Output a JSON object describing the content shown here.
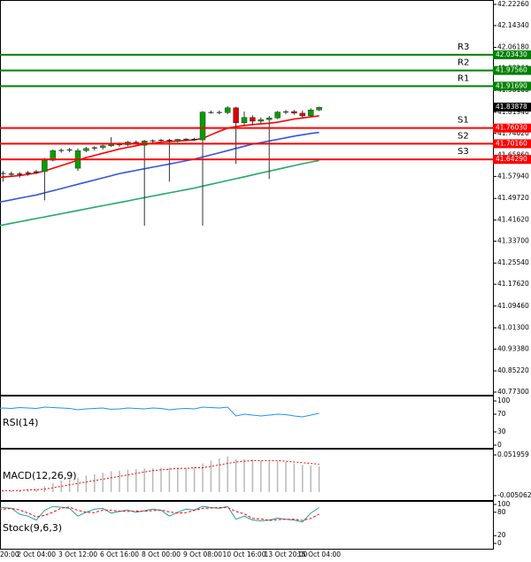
{
  "chart_data": [
    {
      "type": "candlestick",
      "categories": [
        "20:00",
        null,
        null,
        null,
        null,
        "2 Oct 04:00",
        null,
        null,
        null,
        null,
        "3 Oct 12:00",
        null,
        null,
        null,
        null,
        "6 Oct 16:00",
        null,
        null,
        null,
        null,
        "8 Oct 00:00",
        null,
        null,
        null,
        null,
        "9 Oct 08:00",
        null,
        null,
        null,
        null,
        "10 Oct 16:00",
        null,
        null,
        null,
        null,
        "13 Oct 20:00",
        null,
        null,
        null,
        "15 Oct 04:00"
      ],
      "open": [
        41.6,
        41.592,
        41.59,
        41.586,
        41.59,
        41.594,
        41.598,
        41.64,
        41.676,
        41.678,
        41.61,
        41.676,
        41.684,
        41.688,
        41.694,
        41.7,
        41.698,
        41.708,
        41.696,
        41.712,
        41.714,
        41.716,
        41.712,
        41.718,
        41.72,
        41.716,
        41.82,
        41.82,
        41.818,
        41.836,
        41.78,
        41.8,
        41.786,
        41.792,
        41.798,
        41.82,
        41.822,
        41.816,
        41.806,
        41.828
      ],
      "high": [
        41.61,
        41.6,
        41.598,
        41.596,
        41.6,
        41.604,
        41.648,
        41.68,
        41.684,
        41.686,
        41.684,
        41.69,
        41.692,
        41.698,
        41.726,
        41.706,
        41.712,
        41.714,
        41.716,
        41.718,
        41.72,
        41.72,
        41.72,
        41.722,
        41.724,
        41.824,
        41.826,
        41.826,
        41.842,
        41.84,
        41.822,
        41.808,
        41.8,
        41.806,
        41.824,
        41.828,
        41.828,
        41.826,
        41.834,
        41.84
      ],
      "low": [
        41.585,
        41.56,
        41.578,
        41.575,
        41.582,
        41.588,
        41.49,
        41.636,
        41.668,
        41.67,
        41.6,
        41.67,
        41.676,
        41.68,
        41.69,
        41.69,
        41.692,
        41.7,
        41.395,
        41.706,
        41.708,
        41.56,
        41.706,
        41.712,
        41.712,
        41.395,
        41.814,
        41.812,
        41.812,
        41.626,
        41.77,
        41.772,
        41.778,
        41.57,
        41.794,
        41.812,
        41.81,
        41.796,
        41.802,
        41.824
      ],
      "close": [
        41.592,
        41.59,
        41.586,
        41.59,
        41.594,
        41.598,
        41.64,
        41.676,
        41.678,
        41.68,
        41.676,
        41.684,
        41.688,
        41.694,
        41.7,
        41.698,
        41.708,
        41.704,
        41.712,
        41.714,
        41.716,
        41.712,
        41.718,
        41.72,
        41.716,
        41.82,
        41.82,
        41.818,
        41.836,
        41.78,
        41.8,
        41.786,
        41.792,
        41.798,
        41.82,
        41.822,
        41.816,
        41.806,
        41.828,
        41.838
      ],
      "up_color": "#00a000",
      "down_color": "#e00000",
      "lines": [
        {
          "color": "#ff0000",
          "values": [
            41.575,
            41.577,
            41.58,
            41.583,
            41.587,
            41.592,
            41.6,
            41.61,
            41.62,
            41.63,
            41.64,
            41.65,
            41.658,
            41.666,
            41.674,
            41.682,
            41.688,
            41.694,
            41.7,
            41.704,
            41.708,
            41.71,
            41.712,
            41.714,
            41.716,
            41.722,
            41.735,
            41.748,
            41.76,
            41.766,
            41.77,
            41.773,
            41.776,
            41.778,
            41.782,
            41.788,
            41.794,
            41.798,
            41.802,
            41.806
          ]
        },
        {
          "color": "#3355dd",
          "values": [
            41.48,
            41.486,
            41.492,
            41.498,
            41.504,
            41.51,
            41.518,
            41.526,
            41.534,
            41.542,
            41.55,
            41.558,
            41.566,
            41.574,
            41.582,
            41.59,
            41.596,
            41.602,
            41.608,
            41.614,
            41.62,
            41.626,
            41.632,
            41.638,
            41.644,
            41.652,
            41.66,
            41.668,
            41.676,
            41.684,
            41.692,
            41.7,
            41.706,
            41.712,
            41.718,
            41.724,
            41.73,
            41.735,
            41.74,
            41.744
          ]
        },
        {
          "color": "#22aa66",
          "values": [
            41.392,
            41.398,
            41.404,
            41.41,
            41.416,
            41.422,
            41.428,
            41.434,
            41.44,
            41.446,
            41.452,
            41.458,
            41.464,
            41.47,
            41.476,
            41.482,
            41.488,
            41.494,
            41.5,
            41.506,
            41.512,
            41.518,
            41.524,
            41.53,
            41.536,
            41.543,
            41.55,
            41.557,
            41.564,
            41.571,
            41.578,
            41.585,
            41.592,
            41.599,
            41.606,
            41.613,
            41.62,
            41.627,
            41.633,
            41.639
          ]
        }
      ],
      "levels": [
        {
          "name": "R3",
          "value": 42.0343,
          "label": "42.03430",
          "color": "#008000"
        },
        {
          "name": "R2",
          "value": 41.9756,
          "label": "41.97560",
          "color": "#008000"
        },
        {
          "name": "R1",
          "value": 41.9169,
          "label": "41.91690",
          "color": "#008000"
        },
        {
          "name": "S1",
          "value": 41.7603,
          "label": "41.76030",
          "color": "#ff0000"
        },
        {
          "name": "S2",
          "value": 41.7016,
          "label": "41.70160",
          "color": "#ff0000"
        },
        {
          "name": "S3",
          "value": 41.6429,
          "label": "41.64290",
          "color": "#ff0000"
        }
      ],
      "last_price": 41.83878,
      "ylim": [
        40.773,
        42.2226
      ],
      "yticks": [
        {
          "value": 42.2226,
          "label": "42.22260"
        },
        {
          "value": 42.1434,
          "label": "42.14340"
        },
        {
          "value": 42.0618,
          "label": "42.06180"
        },
        {
          "value": 41.9826,
          "label": "41.98260"
        },
        {
          "value": 41.901,
          "label": "41.90100"
        },
        {
          "value": 41.8194,
          "label": "41.81940"
        },
        {
          "value": 41.7402,
          "label": "41.74020"
        },
        {
          "value": 41.6586,
          "label": "41.65860"
        },
        {
          "value": 41.5794,
          "label": "41.57940"
        },
        {
          "value": 41.4972,
          "label": "41.49720"
        },
        {
          "value": 41.4162,
          "label": "41.41620"
        },
        {
          "value": 41.337,
          "label": "41.33700"
        },
        {
          "value": 41.2554,
          "label": "41.25540"
        },
        {
          "value": 41.1762,
          "label": "41.17620"
        },
        {
          "value": 41.0946,
          "label": "41.09460"
        },
        {
          "value": 41.013,
          "label": "41.01300"
        },
        {
          "value": 40.9338,
          "label": "40.93380"
        },
        {
          "value": 40.8522,
          "label": "40.85220"
        },
        {
          "value": 40.773,
          "label": "40.77300"
        }
      ]
    },
    {
      "type": "line",
      "title": "RSI(14)",
      "ylim": [
        0,
        100
      ],
      "yticks": [
        100,
        70,
        30,
        0
      ],
      "series": [
        {
          "color": "#1e90ff",
          "style": "solid",
          "values": [
            82,
            84,
            83,
            85,
            84,
            83,
            86,
            85,
            84,
            83,
            80,
            82,
            83,
            84,
            81,
            82,
            84,
            83,
            82,
            84,
            83,
            80,
            82,
            83,
            82,
            86,
            85,
            84,
            86,
            66,
            70,
            68,
            66,
            68,
            70,
            69,
            66,
            64,
            68,
            72
          ]
        }
      ]
    },
    {
      "type": "macd",
      "title": "MACD(12,26,9)",
      "ylim": [
        -0.005062,
        0.051959
      ],
      "yticks": [
        0.051959,
        -0.005062
      ],
      "histogram": {
        "color": "#b8b8b8",
        "values": [
          0.0,
          0.001,
          0.002,
          0.002,
          0.003,
          0.004,
          0.008,
          0.012,
          0.016,
          0.018,
          0.02,
          0.023,
          0.025,
          0.027,
          0.029,
          0.03,
          0.031,
          0.032,
          0.033,
          0.033,
          0.034,
          0.034,
          0.034,
          0.034,
          0.034,
          0.04,
          0.044,
          0.047,
          0.05,
          0.046,
          0.046,
          0.045,
          0.044,
          0.043,
          0.043,
          0.042,
          0.04,
          0.038,
          0.037,
          0.036
        ]
      },
      "signal": {
        "color": "#ff0000",
        "values": [
          0.002,
          0.002,
          0.002,
          0.002,
          0.003,
          0.003,
          0.004,
          0.006,
          0.008,
          0.01,
          0.012,
          0.014,
          0.016,
          0.018,
          0.02,
          0.022,
          0.024,
          0.026,
          0.028,
          0.03,
          0.031,
          0.032,
          0.033,
          0.033,
          0.034,
          0.034,
          0.036,
          0.038,
          0.04,
          0.042,
          0.043,
          0.044,
          0.044,
          0.044,
          0.044,
          0.043,
          0.042,
          0.041,
          0.04,
          0.039
        ]
      }
    },
    {
      "type": "line",
      "title": "Stock(9,6,3)",
      "ylim": [
        0,
        100
      ],
      "yticks": [
        100,
        80,
        20,
        0
      ],
      "series": [
        {
          "color": "#20a0a0",
          "style": "solid",
          "values": [
            88,
            92,
            90,
            75,
            70,
            60,
            85,
            95,
            93,
            90,
            70,
            80,
            88,
            90,
            78,
            82,
            86,
            80,
            84,
            88,
            85,
            70,
            80,
            88,
            86,
            95,
            92,
            90,
            95,
            62,
            70,
            60,
            58,
            60,
            65,
            62,
            60,
            55,
            78,
            92
          ]
        },
        {
          "color": "#ff0000",
          "style": "dashed",
          "values": [
            85,
            88,
            90,
            86,
            78,
            68,
            72,
            80,
            91,
            93,
            85,
            80,
            79,
            86,
            85,
            83,
            82,
            83,
            83,
            84,
            86,
            81,
            78,
            79,
            85,
            90,
            91,
            92,
            92,
            82,
            76,
            64,
            63,
            59,
            61,
            62,
            62,
            59,
            64,
            75
          ]
        }
      ]
    }
  ]
}
